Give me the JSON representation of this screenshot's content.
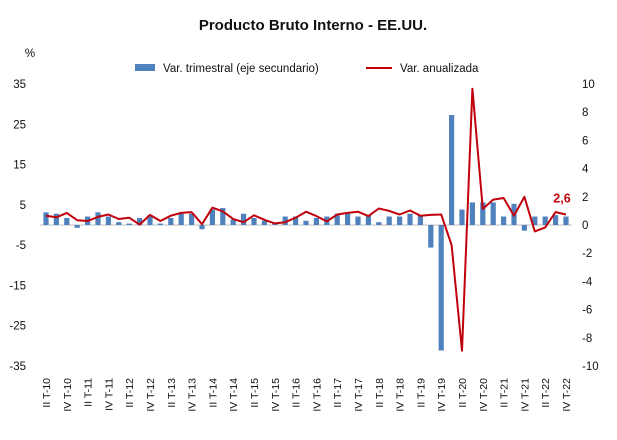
{
  "chart_data": {
    "type": "bar+line",
    "title": "Producto Bruto Interno - EE.UU.",
    "y_unit_label": "%",
    "legend": {
      "placement": "top",
      "bar_label": "Var. trimestral (eje secundario)",
      "line_label": "Var. anualizada"
    },
    "colors": {
      "bar": "#4f81bd",
      "line": "#c0000b",
      "annotation": "#c0000b",
      "zero_line": "#bfbfbf"
    },
    "grid": false,
    "y_left": {
      "min": -35,
      "max": 35,
      "ticks": [
        -35,
        -25,
        -15,
        -5,
        5,
        15,
        25,
        35
      ]
    },
    "y_right": {
      "min": -10,
      "max": 10,
      "ticks": [
        -10,
        -8,
        -6,
        -4,
        -2,
        0,
        2,
        4,
        6,
        8,
        10
      ]
    },
    "x_labels": [
      {
        "index": 0,
        "label": "II T-10"
      },
      {
        "index": 2,
        "label": "IV T-10"
      },
      {
        "index": 4,
        "label": "II T-11"
      },
      {
        "index": 6,
        "label": "IV T-11"
      },
      {
        "index": 8,
        "label": "II T-12"
      },
      {
        "index": 10,
        "label": "IV T-12"
      },
      {
        "index": 12,
        "label": "II T-13"
      },
      {
        "index": 14,
        "label": "IV T-13"
      },
      {
        "index": 16,
        "label": "II T-14"
      },
      {
        "index": 18,
        "label": "IV T-14"
      },
      {
        "index": 20,
        "label": "II T-15"
      },
      {
        "index": 22,
        "label": "IV T-15"
      },
      {
        "index": 24,
        "label": "II T-16"
      },
      {
        "index": 26,
        "label": "IV T-16"
      },
      {
        "index": 28,
        "label": "II T-17"
      },
      {
        "index": 30,
        "label": "IV T-17"
      },
      {
        "index": 32,
        "label": "II T-18"
      },
      {
        "index": 34,
        "label": "IV T-18"
      },
      {
        "index": 36,
        "label": "II T-19"
      },
      {
        "index": 38,
        "label": "IV T-19"
      },
      {
        "index": 40,
        "label": "II T-20"
      },
      {
        "index": 42,
        "label": "IV T-20"
      },
      {
        "index": 44,
        "label": "II T-21"
      },
      {
        "index": 46,
        "label": "IV T-21"
      },
      {
        "index": 48,
        "label": "II T-22"
      },
      {
        "index": 50,
        "label": "IV T-22"
      }
    ],
    "series": [
      {
        "type": "bar",
        "axis": "secondary",
        "values": [
          0.9,
          0.8,
          0.5,
          -0.2,
          0.6,
          0.9,
          0.6,
          0.2,
          0.1,
          0.5,
          0.7,
          0.1,
          0.5,
          0.8,
          0.8,
          -0.3,
          1.1,
          1.2,
          0.4,
          0.8,
          0.5,
          0.3,
          0.1,
          0.6,
          0.6,
          0.3,
          0.5,
          0.6,
          0.8,
          0.9,
          0.6,
          0.7,
          0.2,
          0.6,
          0.6,
          0.8,
          0.7,
          -1.6,
          -8.9,
          7.8,
          1.1,
          1.6,
          1.6,
          1.6,
          0.6,
          1.5,
          -0.4,
          0.6,
          0.6,
          0.7,
          0.6
        ]
      },
      {
        "type": "line",
        "axis": "primary",
        "values": [
          2.3,
          1.9,
          3.0,
          1.2,
          1.0,
          2.0,
          2.6,
          1.5,
          1.8,
          0.1,
          2.5,
          1.0,
          2.3,
          3.0,
          3.2,
          0.2,
          4.3,
          3.4,
          1.5,
          0.7,
          2.4,
          1.3,
          0.4,
          0.7,
          1.8,
          3.3,
          2.2,
          0.9,
          2.6,
          3.0,
          3.3,
          2.2,
          4.1,
          3.5,
          2.6,
          3.6,
          2.3,
          2.5,
          2.6,
          -5.0,
          -31.2,
          33.8,
          4.0,
          6.3,
          6.7,
          2.3,
          7.0,
          -1.6,
          -0.6,
          3.2,
          2.6
        ]
      }
    ],
    "annotation": {
      "index": 50,
      "text": "2,6"
    }
  }
}
